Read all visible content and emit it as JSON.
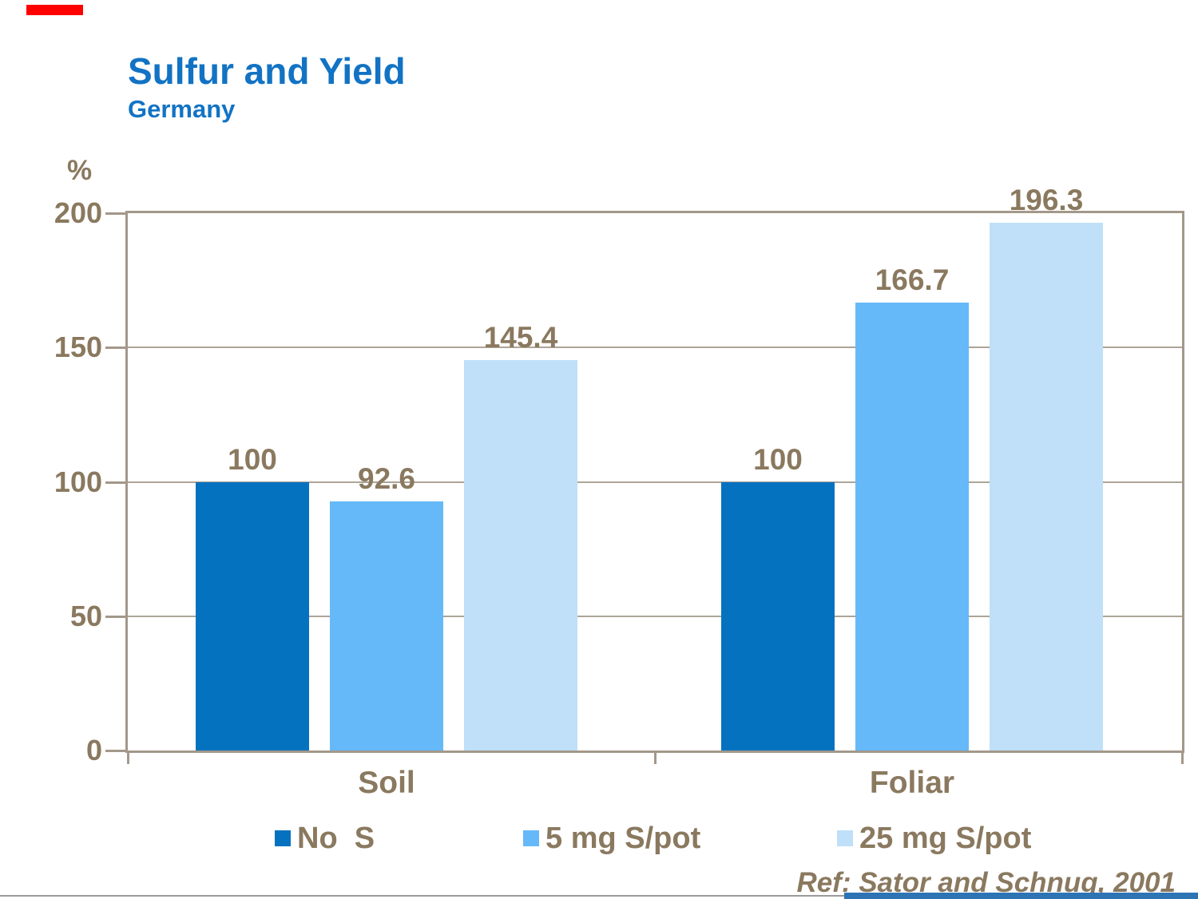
{
  "slide": {
    "title": "Sulfur and Yield",
    "subtitle": "Germany",
    "reference": "Ref: Sator and Schnug, 2001"
  },
  "colors": {
    "title_blue": "#1273C4",
    "text_brown": "#8A795F",
    "frame_tan": "#A3988A",
    "gridline": "#ADA497",
    "accent_red": "#FF0000",
    "bottom_rule_gray": "#9B9B9B",
    "bottom_bar_blue": "#2E74B5",
    "bar_dark_blue": "#0572BF",
    "bar_mid_blue": "#66B9F9",
    "bar_light_blue": "#BFE0F8"
  },
  "chart_data": {
    "type": "bar",
    "title": "Sulfur and Yield",
    "subtitle": "Germany",
    "xlabel": "",
    "ylabel": "%",
    "ylim": [
      0,
      200
    ],
    "yticks": [
      0,
      50,
      100,
      150,
      200
    ],
    "grid": true,
    "legend_position": "bottom",
    "categories": [
      "Soil",
      "Foliar"
    ],
    "series": [
      {
        "name": "No  S",
        "color": "#0572BF",
        "values": [
          100,
          100
        ]
      },
      {
        "name": "5 mg S/pot",
        "color": "#66B9F9",
        "values": [
          92.6,
          166.7
        ]
      },
      {
        "name": "25 mg S/pot",
        "color": "#BFE0F8",
        "values": [
          145.4,
          196.3
        ]
      }
    ],
    "data_labels": [
      [
        "100",
        "92.6",
        "145.4"
      ],
      [
        "100",
        "166.7",
        "196.3"
      ]
    ]
  }
}
